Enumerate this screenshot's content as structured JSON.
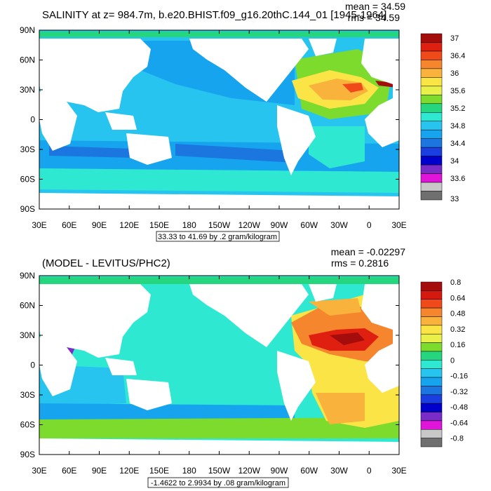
{
  "chart_data": [
    {
      "type": "heatmap",
      "title": "SALINITY at z= 984.7m, b.e20.BHIST.f09_g16.20thC.144_01 [1945-1964]",
      "stats": {
        "mean": "mean = 34.59",
        "rms": "rms = 34.59"
      },
      "range_note": "33.33 to 41.69 by .2 gram/kilogram",
      "x_ticks": [
        "30E",
        "60E",
        "90E",
        "120E",
        "150E",
        "180",
        "150W",
        "120W",
        "90W",
        "60W",
        "30W",
        "0",
        "30E"
      ],
      "y_ticks": [
        "90N",
        "60N",
        "30N",
        "0",
        "30S",
        "60S",
        "90S"
      ],
      "colorbar": {
        "labels": [
          "37",
          "36.4",
          "36",
          "35.6",
          "35.2",
          "34.8",
          "34.4",
          "34",
          "33.6",
          "33"
        ],
        "colors": [
          "#a50d0d",
          "#df1f0f",
          "#f04a1a",
          "#f5862e",
          "#f9b23c",
          "#fbe446",
          "#e9f04a",
          "#7cdb2c",
          "#26d67f",
          "#2ee8d2",
          "#28c4f0",
          "#17a4ee",
          "#1c76e0",
          "#1a3ee0",
          "#0000cc",
          "#7a2cc8",
          "#e015d9",
          "#c8c8c8",
          "#6f6f6f"
        ]
      }
    },
    {
      "type": "heatmap",
      "title": "(MODEL - LEVITUS/PHC2)",
      "stats": {
        "mean": "mean = -0.02297",
        "rms": "rms = 0.2816"
      },
      "range_note": "-1.4622 to 2.9934 by .08 gram/kilogram",
      "x_ticks": [
        "30E",
        "60E",
        "90E",
        "120E",
        "150E",
        "180",
        "150W",
        "120W",
        "90W",
        "60W",
        "30W",
        "0",
        "30E"
      ],
      "y_ticks": [
        "90N",
        "60N",
        "30N",
        "0",
        "30S",
        "60S",
        "90S"
      ],
      "colorbar": {
        "labels": [
          "0.8",
          "0.64",
          "0.48",
          "0.32",
          "0.16",
          "0",
          "-0.16",
          "-0.32",
          "-0.48",
          "-0.64",
          "-0.8"
        ],
        "colors": [
          "#a50d0d",
          "#d41a10",
          "#f04a1a",
          "#f5862e",
          "#f9b23c",
          "#fbe446",
          "#e9f04a",
          "#7cdb2c",
          "#26d67f",
          "#2ee8d2",
          "#28c4f0",
          "#17a4ee",
          "#1c76e0",
          "#1a3ee0",
          "#0000cc",
          "#7a2cc8",
          "#e015d9",
          "#c8c8c8",
          "#6f6f6f"
        ]
      }
    }
  ],
  "palette": {
    "ocean_top": "#28c4f0",
    "ocean_top_deep": "#17a4ee",
    "ocean_top_south": "#1c76e0",
    "ocean_top_atlantic": "#f9b23c",
    "ocean_top_med": "#a50d0d",
    "arctic": "#26d67f",
    "ocean_bottom": "#2ee8d2",
    "ocean_bottom_south": "#7cdb2c",
    "ocean_bottom_atlantic": "#f5862e",
    "ocean_bottom_hot": "#df1f0f",
    "ocean_bottom_yellow": "#fbe446",
    "land": "#ffffff"
  }
}
